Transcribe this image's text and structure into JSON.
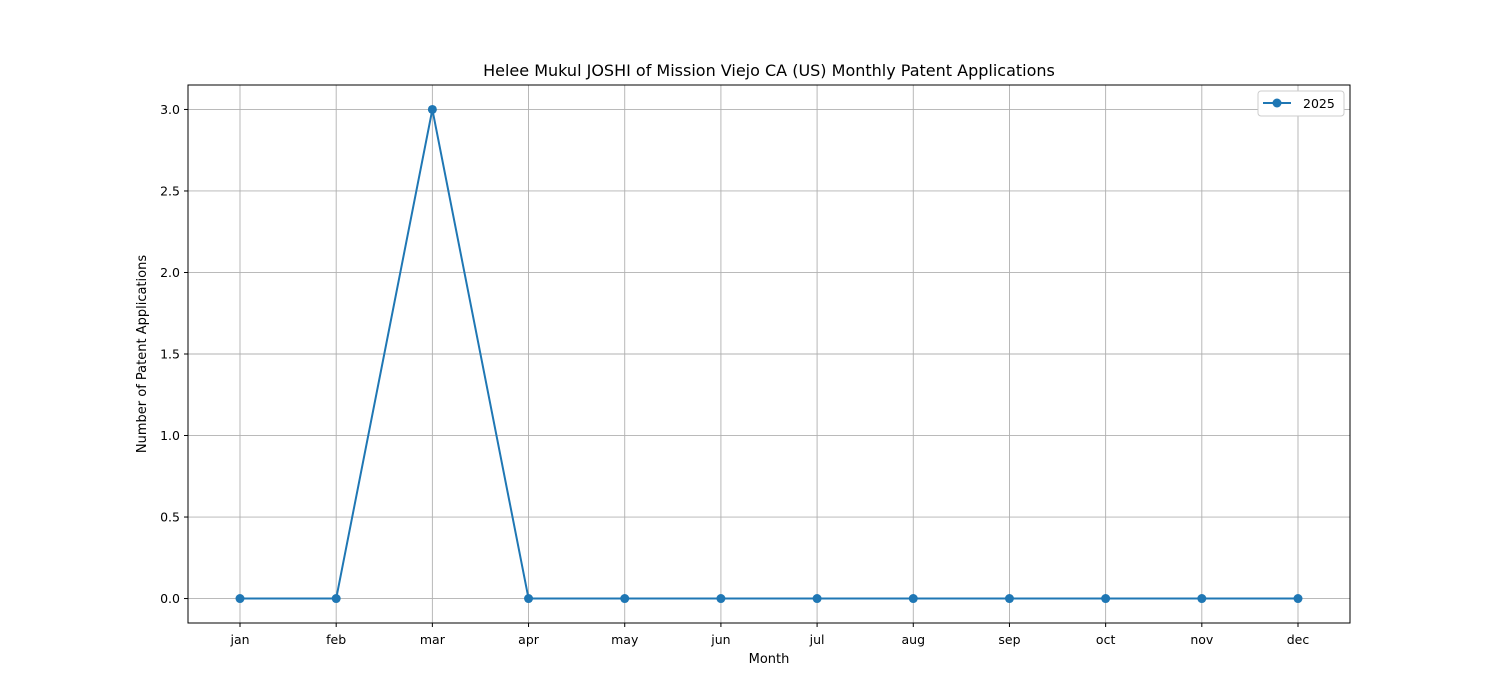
{
  "chart_data": {
    "type": "line",
    "title": "Helee Mukul JOSHI of Mission Viejo CA (US) Monthly Patent Applications",
    "xlabel": "Month",
    "ylabel": "Number of Patent Applications",
    "categories": [
      "jan",
      "feb",
      "mar",
      "apr",
      "may",
      "jun",
      "jul",
      "aug",
      "sep",
      "oct",
      "nov",
      "dec"
    ],
    "yticks": [
      "0.0",
      "0.5",
      "1.0",
      "1.5",
      "2.0",
      "2.5",
      "3.0"
    ],
    "ylim": [
      -0.15,
      3.15
    ],
    "grid": true,
    "legend_position": "top-right",
    "series": [
      {
        "name": "2025",
        "color": "#1f77b4",
        "marker": "circle",
        "values": [
          0,
          0,
          3,
          0,
          0,
          0,
          0,
          0,
          0,
          0,
          0,
          0
        ]
      }
    ]
  }
}
